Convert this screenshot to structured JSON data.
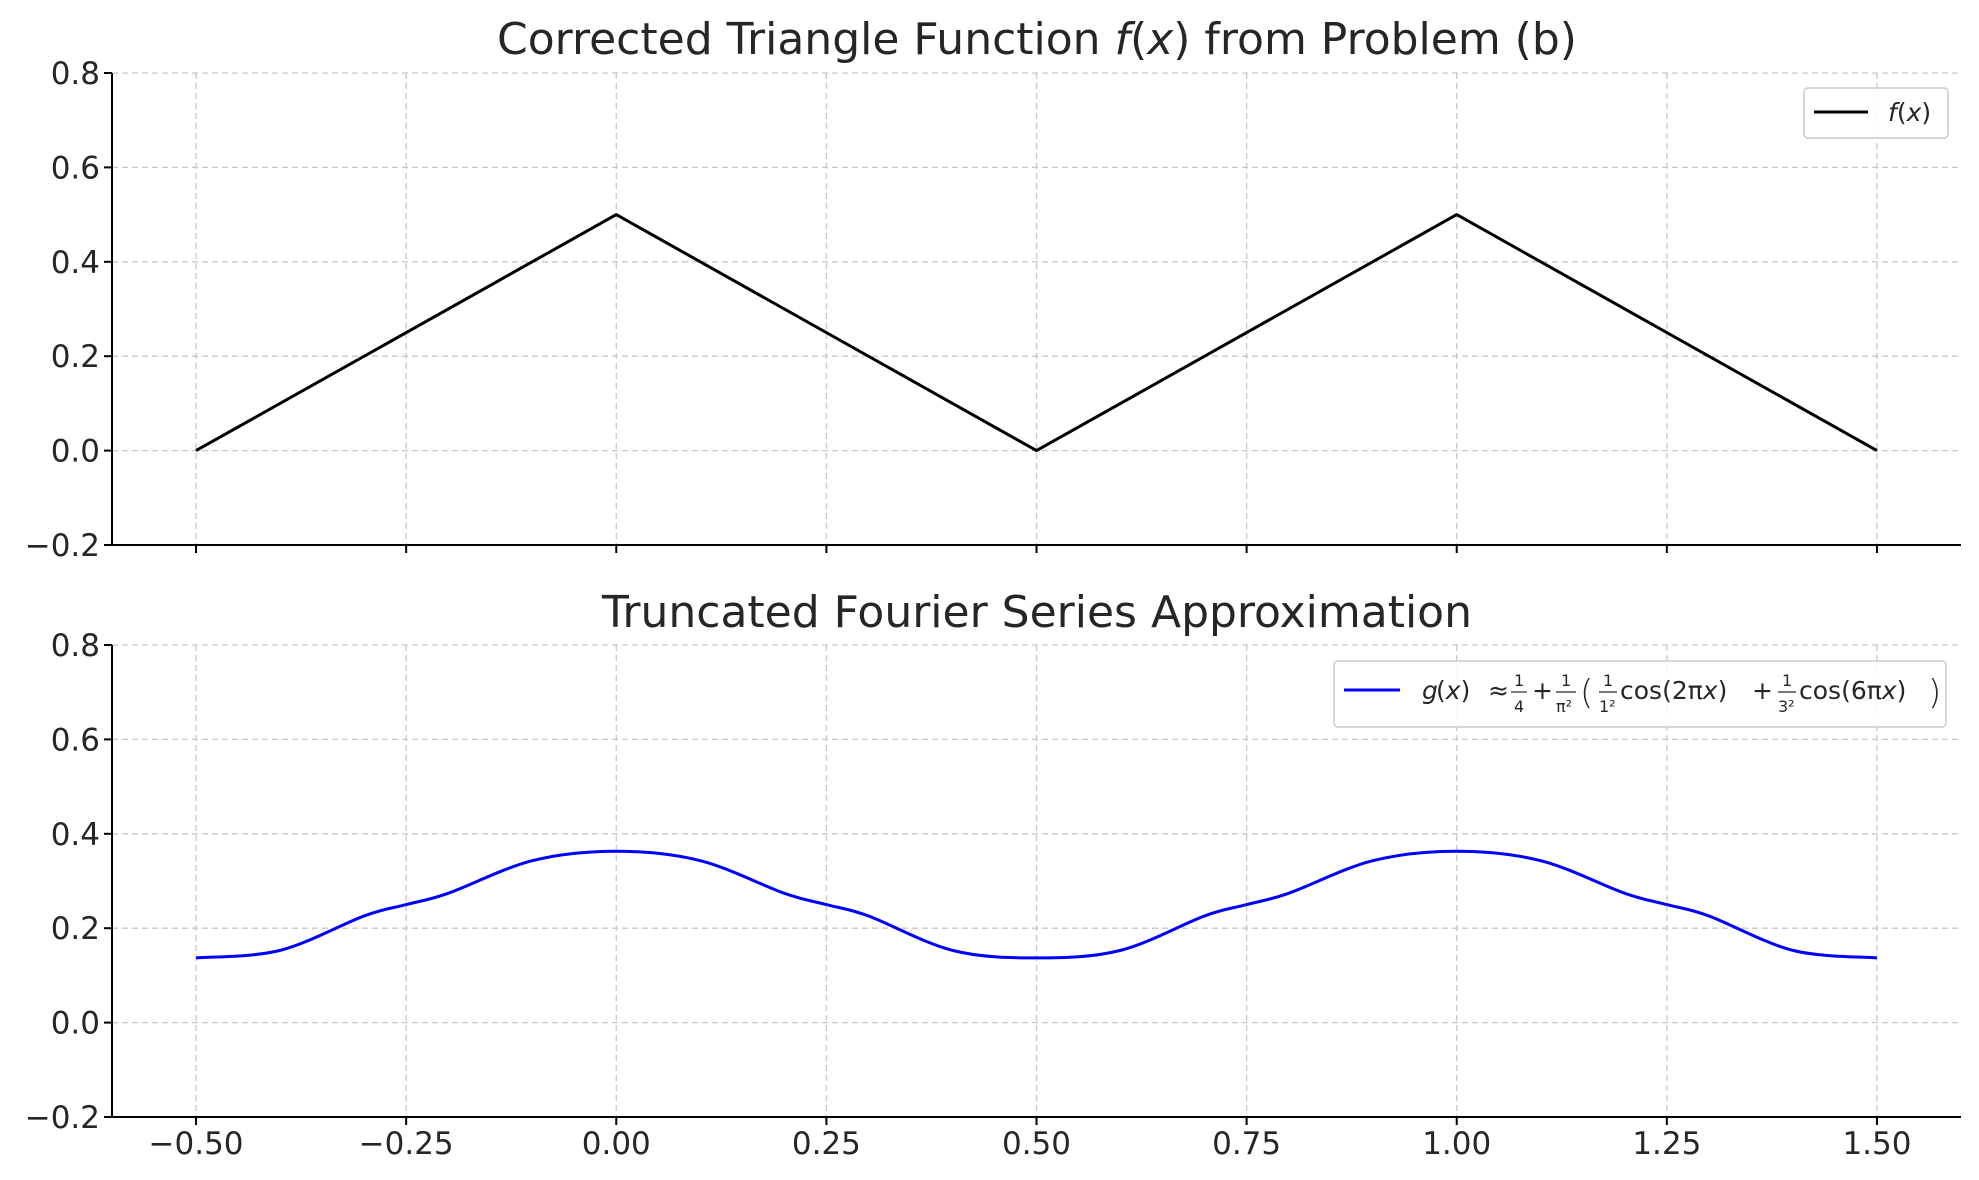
{
  "chart_data": [
    {
      "type": "line",
      "title": "Corrected Triangle Function f(x) from Problem (b)",
      "title_parts": {
        "before": "Corrected Triangle Function ",
        "f": "f",
        "paren_open": "(",
        "x": "x",
        "paren_close": ")",
        "after": " from Problem (b)"
      },
      "xlim": [
        -0.6,
        1.6
      ],
      "ylim": [
        -0.2,
        0.8
      ],
      "xticks": [
        "−0.50",
        "−0.25",
        "0.00",
        "0.25",
        "0.50",
        "0.75",
        "1.00",
        "1.25",
        "1.50"
      ],
      "xtick_values": [
        -0.5,
        -0.25,
        0,
        0.25,
        0.5,
        0.75,
        1.0,
        1.25,
        1.5
      ],
      "xticks_labeled": false,
      "yticks": [
        "−0.2",
        "0.0",
        "0.2",
        "0.4",
        "0.6",
        "0.8"
      ],
      "ytick_values": [
        -0.2,
        0.0,
        0.2,
        0.4,
        0.6,
        0.8
      ],
      "grid": true,
      "legend_position": "top-right",
      "series": [
        {
          "name": "f(x)",
          "color": "#000000",
          "x": [
            -0.5,
            0.0,
            0.5,
            1.0,
            1.5
          ],
          "y": [
            0.0,
            0.5,
            0.0,
            0.5,
            0.0
          ]
        }
      ]
    },
    {
      "type": "line",
      "title": "Truncated Fourier Series Approximation",
      "xlim": [
        -0.6,
        1.6
      ],
      "ylim": [
        -0.2,
        0.8
      ],
      "xticks": [
        "−0.50",
        "−0.25",
        "0.00",
        "0.25",
        "0.50",
        "0.75",
        "1.00",
        "1.25",
        "1.50"
      ],
      "xtick_values": [
        -0.5,
        -0.25,
        0,
        0.25,
        0.5,
        0.75,
        1.0,
        1.25,
        1.5
      ],
      "xticks_labeled": true,
      "yticks": [
        "−0.2",
        "0.0",
        "0.2",
        "0.4",
        "0.6",
        "0.8"
      ],
      "ytick_values": [
        -0.2,
        0.0,
        0.2,
        0.4,
        0.6,
        0.8
      ],
      "grid": true,
      "legend_position": "top-right",
      "series": [
        {
          "name": "g(x) ≈ 1/4 + 1/π² (1/1² cos(2πx) + 1/3² cos(6πx))",
          "color": "#0000ff",
          "x": [
            -0.5,
            -0.4,
            -0.3,
            -0.25,
            -0.2,
            -0.1,
            0.0,
            0.1,
            0.2,
            0.25,
            0.3,
            0.4,
            0.5,
            0.6,
            0.7,
            0.75,
            0.8,
            0.9,
            1.0,
            1.1,
            1.2,
            1.25,
            1.3,
            1.4,
            1.5
          ],
          "y": [
            0.137,
            0.153,
            0.226,
            0.25,
            0.274,
            0.343,
            0.363,
            0.343,
            0.274,
            0.25,
            0.226,
            0.153,
            0.137,
            0.153,
            0.226,
            0.25,
            0.274,
            0.343,
            0.363,
            0.343,
            0.274,
            0.25,
            0.226,
            0.153,
            0.137
          ]
        }
      ]
    }
  ],
  "legend": {
    "top": {
      "f": "f",
      "x": "x"
    },
    "bottom": {
      "g": "g",
      "x": "x",
      "approx": "≈",
      "quarter_num": "1",
      "quarter_den": "4",
      "plus": "+",
      "pi_num": "1",
      "pi_den": "π²",
      "k1_num": "1",
      "k1_den": "1²",
      "cos1": "cos(2πx)",
      "k3_num": "1",
      "k3_den": "3²",
      "cos3": "cos(6πx)"
    }
  }
}
